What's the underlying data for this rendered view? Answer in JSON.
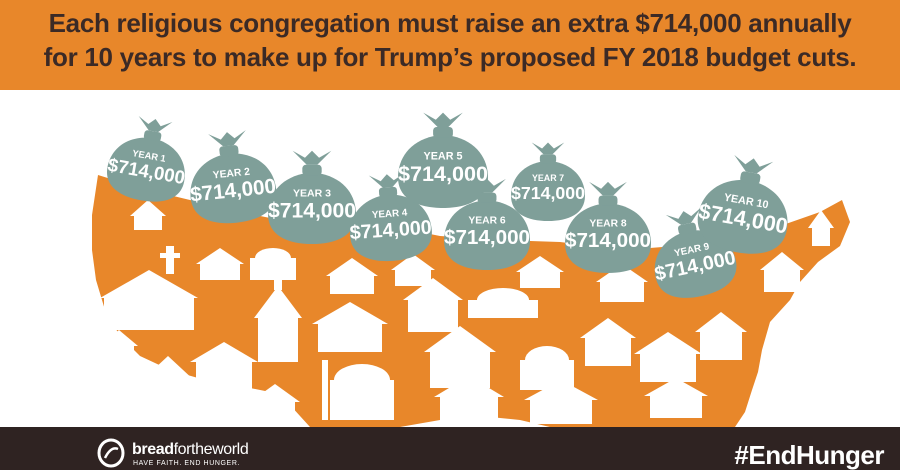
{
  "headline": {
    "line1": "Each religious congregation must raise an extra $714,000 annually",
    "line2": "for 10 years to make up for Trump’s proposed FY 2018 budget cuts."
  },
  "bags": [
    {
      "year": "YEAR 1",
      "amount": "$714,000"
    },
    {
      "year": "YEAR 2",
      "amount": "$714,000"
    },
    {
      "year": "YEAR 3",
      "amount": "$714,000"
    },
    {
      "year": "YEAR 4",
      "amount": "$714,000"
    },
    {
      "year": "YEAR 5",
      "amount": "$714,000"
    },
    {
      "year": "YEAR 6",
      "amount": "$714,000"
    },
    {
      "year": "YEAR 7",
      "amount": "$714,000"
    },
    {
      "year": "YEAR 8",
      "amount": "$714,000"
    },
    {
      "year": "YEAR 9",
      "amount": "$714,000"
    },
    {
      "year": "YEAR 10",
      "amount": "$714,000"
    }
  ],
  "footer": {
    "brand_bold": "bread",
    "brand_light": "fortheworld",
    "tagline": "HAVE FAITH. END HUNGER.",
    "hashtag": "#EndHunger"
  },
  "colors": {
    "banner": "#e8872a",
    "headline_text": "#3b2a26",
    "map": "#e8872a",
    "buildings": "#ffffff",
    "money_bag": "#7f9f99",
    "footer": "#2f2322"
  },
  "icons": [
    "money-bag-icon",
    "church-icon",
    "mosque-icon",
    "synagogue-icon",
    "bread-for-the-world-logo"
  ]
}
